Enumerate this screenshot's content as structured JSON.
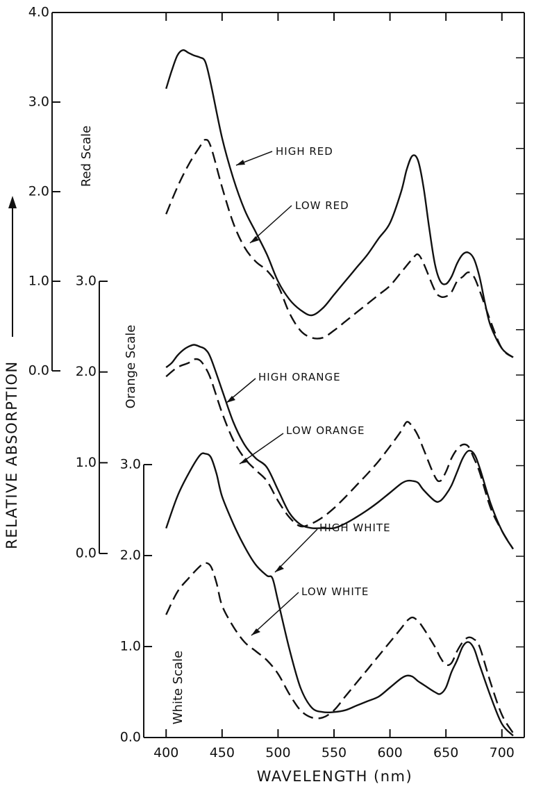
{
  "chart_data": {
    "type": "line",
    "xlabel": "WAVELENGTH (nm)",
    "ylabel": "RELATIVE ABSORPTION",
    "xlim": [
      380,
      720
    ],
    "x_ticks": [
      "400",
      "450",
      "500",
      "550",
      "600",
      "650",
      "700"
    ],
    "scales": [
      {
        "name": "Red Scale",
        "range": [
          0,
          4
        ],
        "ticks": [
          "0.0",
          "1.0",
          "2.0",
          "3.0",
          "4.0"
        ]
      },
      {
        "name": "Orange Scale",
        "range": [
          0,
          3
        ],
        "ticks": [
          "0.0",
          "1.0",
          "2.0",
          "3.0"
        ]
      },
      {
        "name": "White Scale",
        "range": [
          0,
          3
        ],
        "ticks": [
          "0.0",
          "1.0",
          "2.0",
          "3.0"
        ]
      }
    ],
    "series": [
      {
        "name": "HIGH RED",
        "scale": "Red Scale",
        "style": "solid",
        "x": [
          400,
          405,
          410,
          415,
          420,
          425,
          430,
          435,
          440,
          450,
          460,
          470,
          480,
          490,
          500,
          510,
          520,
          530,
          540,
          550,
          560,
          570,
          580,
          590,
          600,
          610,
          615,
          620,
          625,
          630,
          635,
          640,
          645,
          650,
          655,
          660,
          665,
          670,
          675,
          680,
          685,
          690,
          700,
          710
        ],
        "y": [
          3.15,
          3.35,
          3.52,
          3.58,
          3.55,
          3.52,
          3.5,
          3.45,
          3.2,
          2.6,
          2.15,
          1.8,
          1.55,
          1.3,
          1.0,
          0.8,
          0.68,
          0.62,
          0.7,
          0.85,
          1.0,
          1.15,
          1.3,
          1.48,
          1.65,
          2.0,
          2.25,
          2.4,
          2.35,
          2.05,
          1.6,
          1.2,
          1.0,
          0.97,
          1.05,
          1.2,
          1.3,
          1.32,
          1.25,
          1.05,
          0.75,
          0.5,
          0.25,
          0.15
        ]
      },
      {
        "name": "LOW RED",
        "scale": "Red Scale",
        "style": "dashed",
        "x": [
          400,
          410,
          420,
          430,
          435,
          440,
          450,
          460,
          470,
          480,
          490,
          500,
          510,
          520,
          530,
          540,
          550,
          560,
          570,
          580,
          590,
          600,
          610,
          620,
          625,
          630,
          640,
          645,
          650,
          655,
          660,
          665,
          670,
          675,
          680,
          690,
          700,
          710
        ],
        "y": [
          1.75,
          2.05,
          2.3,
          2.5,
          2.58,
          2.5,
          2.05,
          1.65,
          1.38,
          1.22,
          1.12,
          0.95,
          0.65,
          0.45,
          0.37,
          0.37,
          0.45,
          0.55,
          0.65,
          0.75,
          0.85,
          0.95,
          1.1,
          1.25,
          1.3,
          1.2,
          0.9,
          0.83,
          0.83,
          0.88,
          1.0,
          1.05,
          1.1,
          1.05,
          0.9,
          0.55,
          0.25,
          0.15
        ]
      },
      {
        "name": "HIGH ORANGE",
        "scale": "Orange Scale",
        "style": "solid",
        "x": [
          400,
          405,
          410,
          415,
          420,
          425,
          430,
          435,
          440,
          450,
          460,
          470,
          480,
          490,
          500,
          510,
          520,
          530,
          540,
          550,
          560,
          570,
          580,
          590,
          600,
          610,
          615,
          620,
          625,
          630,
          640,
          645,
          650,
          655,
          660,
          665,
          670,
          675,
          680,
          690,
          700,
          710
        ],
        "y": [
          2.05,
          2.1,
          2.18,
          2.24,
          2.28,
          2.3,
          2.28,
          2.25,
          2.15,
          1.8,
          1.45,
          1.2,
          1.05,
          0.95,
          0.7,
          0.45,
          0.32,
          0.28,
          0.28,
          0.28,
          0.33,
          0.4,
          0.48,
          0.57,
          0.67,
          0.77,
          0.8,
          0.8,
          0.78,
          0.7,
          0.58,
          0.58,
          0.65,
          0.75,
          0.9,
          1.05,
          1.13,
          1.1,
          0.95,
          0.55,
          0.25,
          0.05
        ]
      },
      {
        "name": "LOW ORANGE",
        "scale": "Orange Scale",
        "style": "dashed",
        "x": [
          400,
          410,
          420,
          425,
          430,
          435,
          440,
          450,
          460,
          470,
          480,
          490,
          500,
          510,
          520,
          530,
          540,
          550,
          560,
          570,
          580,
          590,
          600,
          610,
          615,
          620,
          625,
          630,
          640,
          645,
          650,
          655,
          660,
          665,
          670,
          675,
          680,
          690,
          700,
          710
        ],
        "y": [
          1.95,
          2.05,
          2.1,
          2.14,
          2.13,
          2.05,
          1.92,
          1.55,
          1.25,
          1.05,
          0.92,
          0.8,
          0.58,
          0.4,
          0.3,
          0.33,
          0.4,
          0.5,
          0.62,
          0.75,
          0.88,
          1.02,
          1.18,
          1.35,
          1.45,
          1.4,
          1.3,
          1.15,
          0.85,
          0.8,
          0.9,
          1.05,
          1.15,
          1.2,
          1.18,
          1.05,
          0.9,
          0.5,
          0.25,
          0.05
        ]
      },
      {
        "name": "HIGH WHITE",
        "scale": "White Scale",
        "style": "solid",
        "x": [
          400,
          410,
          420,
          430,
          435,
          440,
          445,
          450,
          460,
          470,
          480,
          490,
          495,
          500,
          510,
          520,
          530,
          540,
          550,
          560,
          570,
          580,
          590,
          600,
          610,
          615,
          620,
          625,
          630,
          640,
          645,
          650,
          655,
          660,
          665,
          670,
          675,
          680,
          690,
          700,
          710
        ],
        "y": [
          2.3,
          2.65,
          2.9,
          3.1,
          3.12,
          3.08,
          2.9,
          2.65,
          2.35,
          2.1,
          1.9,
          1.78,
          1.75,
          1.5,
          0.98,
          0.55,
          0.33,
          0.28,
          0.28,
          0.3,
          0.35,
          0.4,
          0.45,
          0.55,
          0.65,
          0.68,
          0.67,
          0.62,
          0.58,
          0.5,
          0.48,
          0.55,
          0.72,
          0.85,
          1.0,
          1.05,
          0.98,
          0.8,
          0.45,
          0.15,
          0.02
        ]
      },
      {
        "name": "LOW WHITE",
        "scale": "White Scale",
        "style": "dashed",
        "x": [
          400,
          410,
          420,
          430,
          435,
          440,
          445,
          450,
          460,
          470,
          480,
          490,
          500,
          510,
          520,
          530,
          540,
          550,
          560,
          570,
          580,
          590,
          600,
          610,
          615,
          620,
          625,
          630,
          640,
          645,
          650,
          655,
          660,
          665,
          670,
          675,
          680,
          690,
          700,
          710
        ],
        "y": [
          1.35,
          1.6,
          1.75,
          1.88,
          1.92,
          1.88,
          1.7,
          1.45,
          1.22,
          1.05,
          0.95,
          0.85,
          0.7,
          0.48,
          0.3,
          0.22,
          0.22,
          0.3,
          0.45,
          0.6,
          0.75,
          0.9,
          1.05,
          1.2,
          1.28,
          1.32,
          1.28,
          1.2,
          1.0,
          0.88,
          0.8,
          0.82,
          0.95,
          1.05,
          1.1,
          1.08,
          1.0,
          0.6,
          0.25,
          0.05
        ]
      }
    ]
  }
}
